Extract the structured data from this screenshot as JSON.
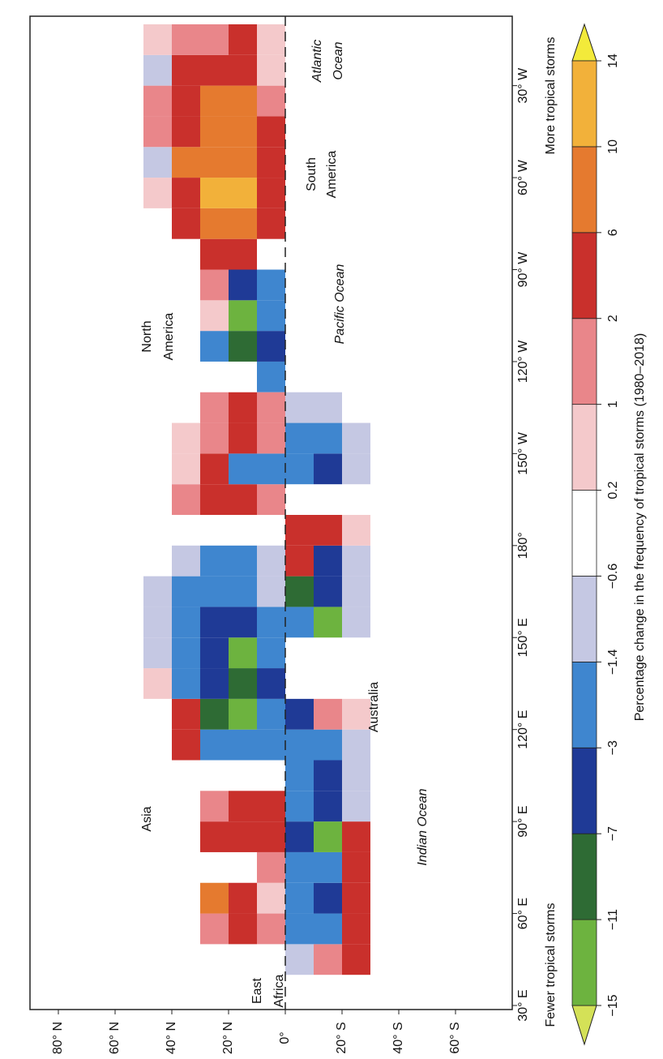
{
  "map": {
    "type": "gridded-map",
    "lat_range": [
      -80,
      90
    ],
    "lon_range": [
      30,
      -10
    ],
    "lat_ticks": [
      {
        "value": 80,
        "label": "80° N"
      },
      {
        "value": 60,
        "label": "60° N"
      },
      {
        "value": 40,
        "label": "40° N"
      },
      {
        "value": 20,
        "label": "20° N"
      },
      {
        "value": 0,
        "label": "0°"
      },
      {
        "value": -20,
        "label": "20° S"
      },
      {
        "value": -40,
        "label": "40° S"
      },
      {
        "value": -60,
        "label": "60° S"
      }
    ],
    "lon_ticks": [
      {
        "value": 30,
        "label": "30° E"
      },
      {
        "value": 60,
        "label": "60° E"
      },
      {
        "value": 90,
        "label": "90° E"
      },
      {
        "value": 120,
        "label": "120° E"
      },
      {
        "value": 150,
        "label": "150° E"
      },
      {
        "value": 180,
        "label": "180°"
      },
      {
        "value": -150,
        "label": "150° W"
      },
      {
        "value": -120,
        "label": "120° W"
      },
      {
        "value": -90,
        "label": "90° W"
      },
      {
        "value": -60,
        "label": "60° W"
      },
      {
        "value": -30,
        "label": "30° W"
      }
    ],
    "region_labels": [
      [
        "Asia"
      ],
      [
        "East",
        "Africa"
      ],
      [
        "Indian Ocean"
      ],
      [
        "Australia"
      ],
      [
        "North",
        "America"
      ],
      [
        "Pacific Ocean"
      ],
      [
        "South",
        "America"
      ],
      [
        "Atlantic",
        "Ocean"
      ]
    ],
    "cells": [
      [
        -80,
        0,
        3
      ],
      [
        -70,
        0,
        4
      ],
      [
        -60,
        0,
        3
      ],
      [
        -50,
        0,
        2
      ],
      [
        -40,
        0,
        1
      ],
      [
        -30,
        0,
        0.5
      ],
      [
        -20,
        0,
        0.5
      ],
      [
        -90,
        10,
        4
      ],
      [
        -80,
        10,
        8
      ],
      [
        -70,
        10,
        10
      ],
      [
        -60,
        10,
        9
      ],
      [
        -50,
        10,
        8
      ],
      [
        -40,
        10,
        7
      ],
      [
        -30,
        10,
        5
      ],
      [
        -20,
        10,
        2
      ],
      [
        -90,
        20,
        4
      ],
      [
        -80,
        20,
        9
      ],
      [
        -70,
        20,
        11
      ],
      [
        -60,
        20,
        8
      ],
      [
        -50,
        20,
        9
      ],
      [
        -40,
        20,
        8
      ],
      [
        -30,
        20,
        5
      ],
      [
        -20,
        20,
        1
      ],
      [
        -80,
        30,
        3
      ],
      [
        -70,
        30,
        4
      ],
      [
        -60,
        30,
        6
      ],
      [
        -50,
        30,
        5
      ],
      [
        -40,
        30,
        4
      ],
      [
        -30,
        30,
        3
      ],
      [
        -20,
        30,
        1
      ],
      [
        -70,
        40,
        0.5
      ],
      [
        -60,
        40,
        -1
      ],
      [
        -50,
        40,
        1
      ],
      [
        -40,
        40,
        1
      ],
      [
        -30,
        40,
        -0.8
      ],
      [
        -20,
        40,
        0.5
      ],
      [
        -130,
        0,
        -2
      ],
      [
        -120,
        0,
        -4
      ],
      [
        -110,
        0,
        -2
      ],
      [
        -100,
        0,
        -2
      ],
      [
        -120,
        10,
        -9
      ],
      [
        -110,
        10,
        -12
      ],
      [
        -100,
        10,
        -4
      ],
      [
        -120,
        20,
        -2
      ],
      [
        -110,
        20,
        0.5
      ],
      [
        -100,
        20,
        1
      ],
      [
        -170,
        0,
        1.5
      ],
      [
        -160,
        0,
        -2
      ],
      [
        -150,
        0,
        1
      ],
      [
        -140,
        0,
        1.5
      ],
      [
        -170,
        10,
        2
      ],
      [
        -160,
        10,
        -2
      ],
      [
        -150,
        10,
        3
      ],
      [
        -140,
        10,
        2.5
      ],
      [
        -170,
        20,
        3
      ],
      [
        -160,
        20,
        2
      ],
      [
        -150,
        20,
        1.5
      ],
      [
        -140,
        20,
        1
      ],
      [
        -170,
        30,
        1
      ],
      [
        -160,
        30,
        0.5
      ],
      [
        -150,
        30,
        0.5
      ],
      [
        110,
        0,
        -2
      ],
      [
        120,
        0,
        -2
      ],
      [
        130,
        0,
        -4
      ],
      [
        140,
        0,
        -3
      ],
      [
        150,
        0,
        -2
      ],
      [
        160,
        0,
        -1
      ],
      [
        170,
        0,
        -1
      ],
      [
        110,
        10,
        -3
      ],
      [
        120,
        10,
        -13
      ],
      [
        130,
        10,
        -8
      ],
      [
        140,
        10,
        -12
      ],
      [
        150,
        10,
        -5
      ],
      [
        160,
        10,
        -3
      ],
      [
        170,
        10,
        -2
      ],
      [
        110,
        20,
        -2
      ],
      [
        120,
        20,
        -10
      ],
      [
        130,
        20,
        -6
      ],
      [
        140,
        20,
        -5
      ],
      [
        150,
        20,
        -4
      ],
      [
        160,
        20,
        -3
      ],
      [
        170,
        20,
        -2
      ],
      [
        110,
        30,
        2
      ],
      [
        120,
        30,
        3
      ],
      [
        130,
        30,
        -2
      ],
      [
        140,
        30,
        -3
      ],
      [
        150,
        30,
        -2
      ],
      [
        160,
        30,
        -2
      ],
      [
        170,
        30,
        -1
      ],
      [
        130,
        40,
        0.5
      ],
      [
        140,
        40,
        -1
      ],
      [
        150,
        40,
        -1
      ],
      [
        160,
        40,
        -1
      ],
      [
        50,
        0,
        1
      ],
      [
        60,
        0,
        0.5
      ],
      [
        70,
        0,
        1.5
      ],
      [
        80,
        0,
        3
      ],
      [
        90,
        0,
        2
      ],
      [
        50,
        10,
        2
      ],
      [
        60,
        10,
        3
      ],
      [
        80,
        10,
        3
      ],
      [
        90,
        10,
        2.5
      ],
      [
        50,
        20,
        1
      ],
      [
        60,
        20,
        6
      ],
      [
        80,
        20,
        2
      ],
      [
        90,
        20,
        1.5
      ],
      [
        40,
        -10,
        -1
      ],
      [
        50,
        -10,
        -2
      ],
      [
        60,
        -10,
        -3
      ],
      [
        70,
        -10,
        -2
      ],
      [
        80,
        -10,
        -4
      ],
      [
        90,
        -10,
        -3
      ],
      [
        100,
        -10,
        -3
      ],
      [
        110,
        -10,
        -3
      ],
      [
        120,
        -10,
        -4
      ],
      [
        40,
        -20,
        1
      ],
      [
        50,
        -20,
        -3
      ],
      [
        60,
        -20,
        -5
      ],
      [
        70,
        -20,
        -3
      ],
      [
        80,
        -20,
        -12
      ],
      [
        90,
        -20,
        -5
      ],
      [
        100,
        -20,
        -4
      ],
      [
        110,
        -20,
        -3
      ],
      [
        120,
        -20,
        1
      ],
      [
        40,
        -30,
        2
      ],
      [
        50,
        -30,
        2
      ],
      [
        60,
        -30,
        3
      ],
      [
        70,
        -30,
        3
      ],
      [
        80,
        -30,
        3
      ],
      [
        90,
        -30,
        -1
      ],
      [
        100,
        -30,
        -0.8
      ],
      [
        110,
        -30,
        -0.8
      ],
      [
        120,
        -30,
        0.5
      ],
      [
        150,
        -10,
        -3
      ],
      [
        160,
        -10,
        -8
      ],
      [
        170,
        -10,
        3
      ],
      [
        180,
        -10,
        2.5
      ],
      [
        -160,
        -10,
        -3
      ],
      [
        -150,
        -10,
        -2.5
      ],
      [
        -140,
        -10,
        -1
      ],
      [
        150,
        -20,
        -12
      ],
      [
        160,
        -20,
        -5
      ],
      [
        170,
        -20,
        -5
      ],
      [
        180,
        -20,
        3
      ],
      [
        -160,
        -20,
        -4
      ],
      [
        -150,
        -20,
        -3
      ],
      [
        -140,
        -20,
        -1
      ],
      [
        150,
        -30,
        -1
      ],
      [
        160,
        -30,
        -1
      ],
      [
        170,
        -30,
        -0.8
      ],
      [
        180,
        -30,
        0.5
      ],
      [
        -160,
        -30,
        -1
      ],
      [
        -150,
        -30,
        -0.8
      ]
    ]
  },
  "colorbar": {
    "title": "Percentage change in the frequency of tropical storms (1980–2018)",
    "low_label": "Fewer tropical storms",
    "high_label": "More tropical storms",
    "ticks": [
      {
        "value": -15,
        "label": "−15"
      },
      {
        "value": -11,
        "label": "−11"
      },
      {
        "value": -7,
        "label": "−7"
      },
      {
        "value": -3,
        "label": "−3"
      },
      {
        "value": -1.4,
        "label": "−1.4"
      },
      {
        "value": -0.6,
        "label": "−0.6"
      },
      0.2,
      1,
      2,
      6,
      10,
      14
    ],
    "colors": [
      "#d4e157",
      "#6db33f",
      "#2e6b34",
      "#1f3a96",
      "#3f86cf",
      "#c5c8e3",
      "#ffffff",
      "#f4c9cb",
      "#e9868a",
      "#c9302c",
      "#e57a2f",
      "#f2b13a",
      "#f3ea3a"
    ]
  }
}
